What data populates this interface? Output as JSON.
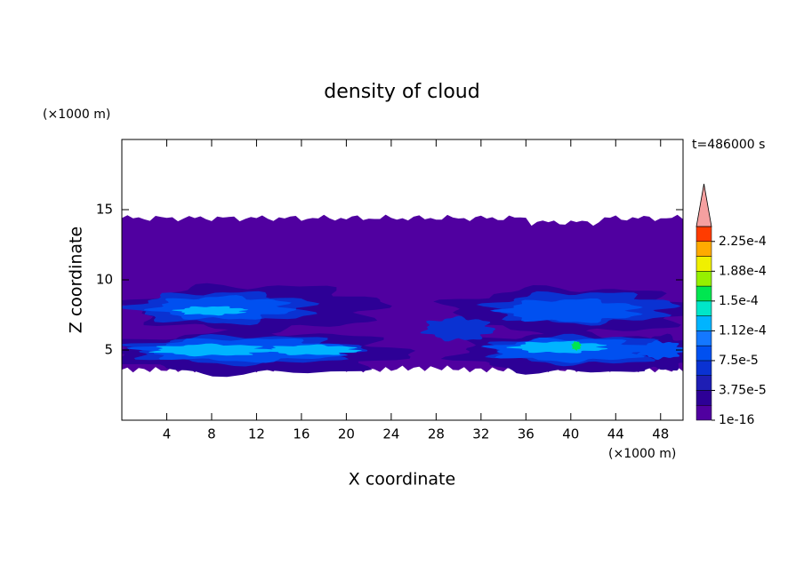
{
  "chart_data": {
    "type": "contour",
    "title": "density of cloud",
    "xlabel": "X coordinate",
    "ylabel": "Z coordinate",
    "xunit": "(×1000 m)",
    "yunit": "(×1000 m)",
    "annotation": "t=486000 s",
    "xlim": [
      0,
      50
    ],
    "ylim": [
      0,
      20
    ],
    "xticks": [
      4,
      8,
      12,
      16,
      20,
      24,
      28,
      32,
      36,
      40,
      44,
      48
    ],
    "yticks": [
      5,
      10,
      15
    ],
    "levels": [
      1e-16,
      1.875e-05,
      3.75e-05,
      5.625e-05,
      7.5e-05,
      9.375e-05,
      0.0001125,
      0.00013125,
      0.00015,
      0.00016875,
      0.0001875,
      0.00020625,
      0.000225
    ],
    "colors": [
      "#5000a0",
      "#2d0096",
      "#1e1eb4",
      "#0a32d2",
      "#0050f0",
      "#1478ff",
      "#00b4ff",
      "#00e6c8",
      "#00e650",
      "#96f000",
      "#f0f000",
      "#ffaa00",
      "#ff3c00"
    ],
    "over_color": "#f5a0a0",
    "clim": [
      1e-16,
      0.00024375
    ],
    "cticks": [
      {
        "value": 1e-16,
        "label": "1e-16"
      },
      {
        "value": 3.75e-05,
        "label": "3.75e-5"
      },
      {
        "value": 7.5e-05,
        "label": "7.5e-5"
      },
      {
        "value": 0.0001125,
        "label": "1.12e-4"
      },
      {
        "value": 0.00015,
        "label": "1.5e-4"
      },
      {
        "value": 0.0001875,
        "label": "1.88e-4"
      },
      {
        "value": 0.000225,
        "label": "2.25e-4"
      }
    ]
  }
}
